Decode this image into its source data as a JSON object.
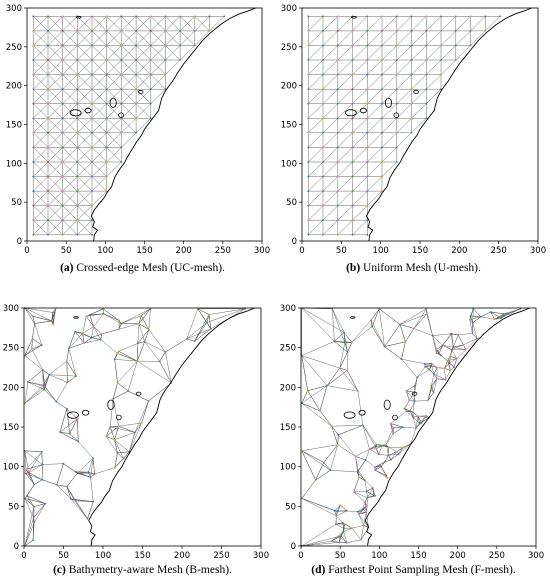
{
  "figure": {
    "panels": [
      {
        "id": "a",
        "tag": "(a)",
        "caption": "Crossed-edge Mesh (UC-mesh).",
        "mesh": "uc",
        "x_ticks": [
          "0",
          "50",
          "100",
          "150",
          "200",
          "250",
          "300"
        ],
        "y_ticks": [
          "0",
          "50",
          "100",
          "150",
          "200",
          "250",
          "300"
        ]
      },
      {
        "id": "b",
        "tag": "(b)",
        "caption": "Uniform Mesh (U-mesh).",
        "mesh": "u",
        "x_ticks": [
          "0",
          "50",
          "100",
          "150",
          "200",
          "250",
          "300"
        ],
        "y_ticks": [
          "0",
          "50",
          "100",
          "150",
          "200",
          "250",
          "300"
        ]
      },
      {
        "id": "c",
        "tag": "(c)",
        "caption": "Bathymetry-aware Mesh (B-mesh).",
        "mesh": "b",
        "x_ticks": [
          "0",
          "50",
          "100",
          "150",
          "200",
          "250",
          "300"
        ],
        "y_ticks": [
          "0",
          "50",
          "100",
          "150",
          "200",
          "250",
          "300"
        ]
      },
      {
        "id": "d",
        "tag": "(d)",
        "caption": "Farthest Point Sampling Mesh (F-mesh).",
        "mesh": "f",
        "x_ticks": [
          "0",
          "50",
          "100",
          "150",
          "200",
          "250",
          "300"
        ],
        "y_ticks": [
          "0",
          "50",
          "100",
          "150",
          "200",
          "250",
          "300"
        ]
      }
    ],
    "colors": {
      "mesh_edge": "#555555",
      "coastline": "#000000",
      "node_dots": [
        "#2ca02c",
        "#9467bd",
        "#d4a017",
        "#1f77b4",
        "#8c564b",
        "#e377c2"
      ]
    }
  }
}
